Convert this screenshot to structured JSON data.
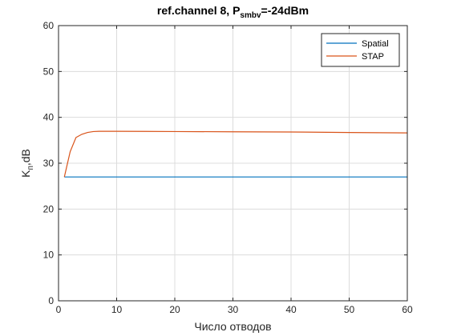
{
  "chart_data": {
    "type": "line",
    "title": {
      "prefix": "ref.channel 8, P",
      "subscript": "smbv",
      "suffix": "=-24dBm"
    },
    "xlabel": "Число отводов",
    "ylabel": {
      "main": "K",
      "subscript": "п",
      "suffix": ",dB"
    },
    "xlim": [
      0,
      60
    ],
    "ylim": [
      0,
      60
    ],
    "xticks": [
      0,
      10,
      20,
      30,
      40,
      50,
      60
    ],
    "yticks": [
      0,
      10,
      20,
      30,
      40,
      50,
      60
    ],
    "grid": true,
    "legend_position": "top-right",
    "series": [
      {
        "name": "Spatial",
        "color": "#0072BD",
        "x": [
          1,
          2,
          3,
          4,
          5,
          6,
          7,
          8,
          10,
          15,
          20,
          30,
          40,
          50,
          60
        ],
        "y": [
          27,
          27,
          27,
          27,
          27,
          27,
          27,
          27,
          27,
          27,
          27,
          27,
          27,
          27,
          27
        ]
      },
      {
        "name": "STAP",
        "color": "#D95319",
        "x": [
          1,
          2,
          3,
          4,
          5,
          6,
          7,
          8,
          10,
          15,
          20,
          30,
          40,
          50,
          60
        ],
        "y": [
          27,
          32.5,
          35.6,
          36.3,
          36.7,
          36.9,
          36.95,
          36.95,
          36.95,
          36.93,
          36.9,
          36.85,
          36.8,
          36.7,
          36.6
        ]
      }
    ]
  }
}
